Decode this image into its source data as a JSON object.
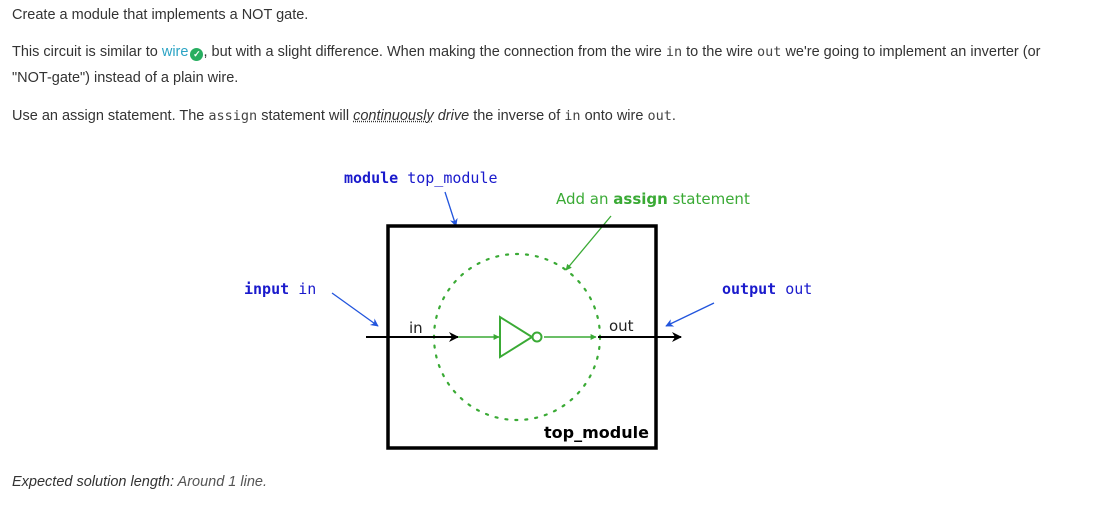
{
  "intro": "Create a module that implements a NOT gate.",
  "para2": {
    "t1": "This circuit is similar to ",
    "link": "wire",
    "t2": ", but with a slight difference. When making the connection from the wire ",
    "code1": "in",
    "t3": " to the wire ",
    "code2": "out",
    "t4": " we're going to implement an inverter (or \"NOT-gate\") instead of a plain wire."
  },
  "para3": {
    "t1": "Use an assign statement. The ",
    "code1": "assign",
    "t2": " statement will ",
    "emph1": "continuously",
    "t3": " ",
    "emph2": "drive",
    "t4": " the inverse of ",
    "code2": "in",
    "t5": " onto wire ",
    "code3": "out",
    "t6": "."
  },
  "diagram": {
    "module_kw": "module",
    "module_name": "top_module",
    "assign_pre": "Add an ",
    "assign_kw": "assign",
    "assign_post": " statement",
    "input_kw": "input",
    "input_name": "in",
    "output_kw": "output",
    "output_name": "out",
    "port_in": "in",
    "port_out": "out",
    "box_label": "top_module"
  },
  "footer": {
    "label": "Expected solution length:",
    "value": " Around 1 line."
  },
  "colors": {
    "keyword_blue": "#1a1acc",
    "green": "#3aaa35",
    "link": "#2aa3c4"
  }
}
